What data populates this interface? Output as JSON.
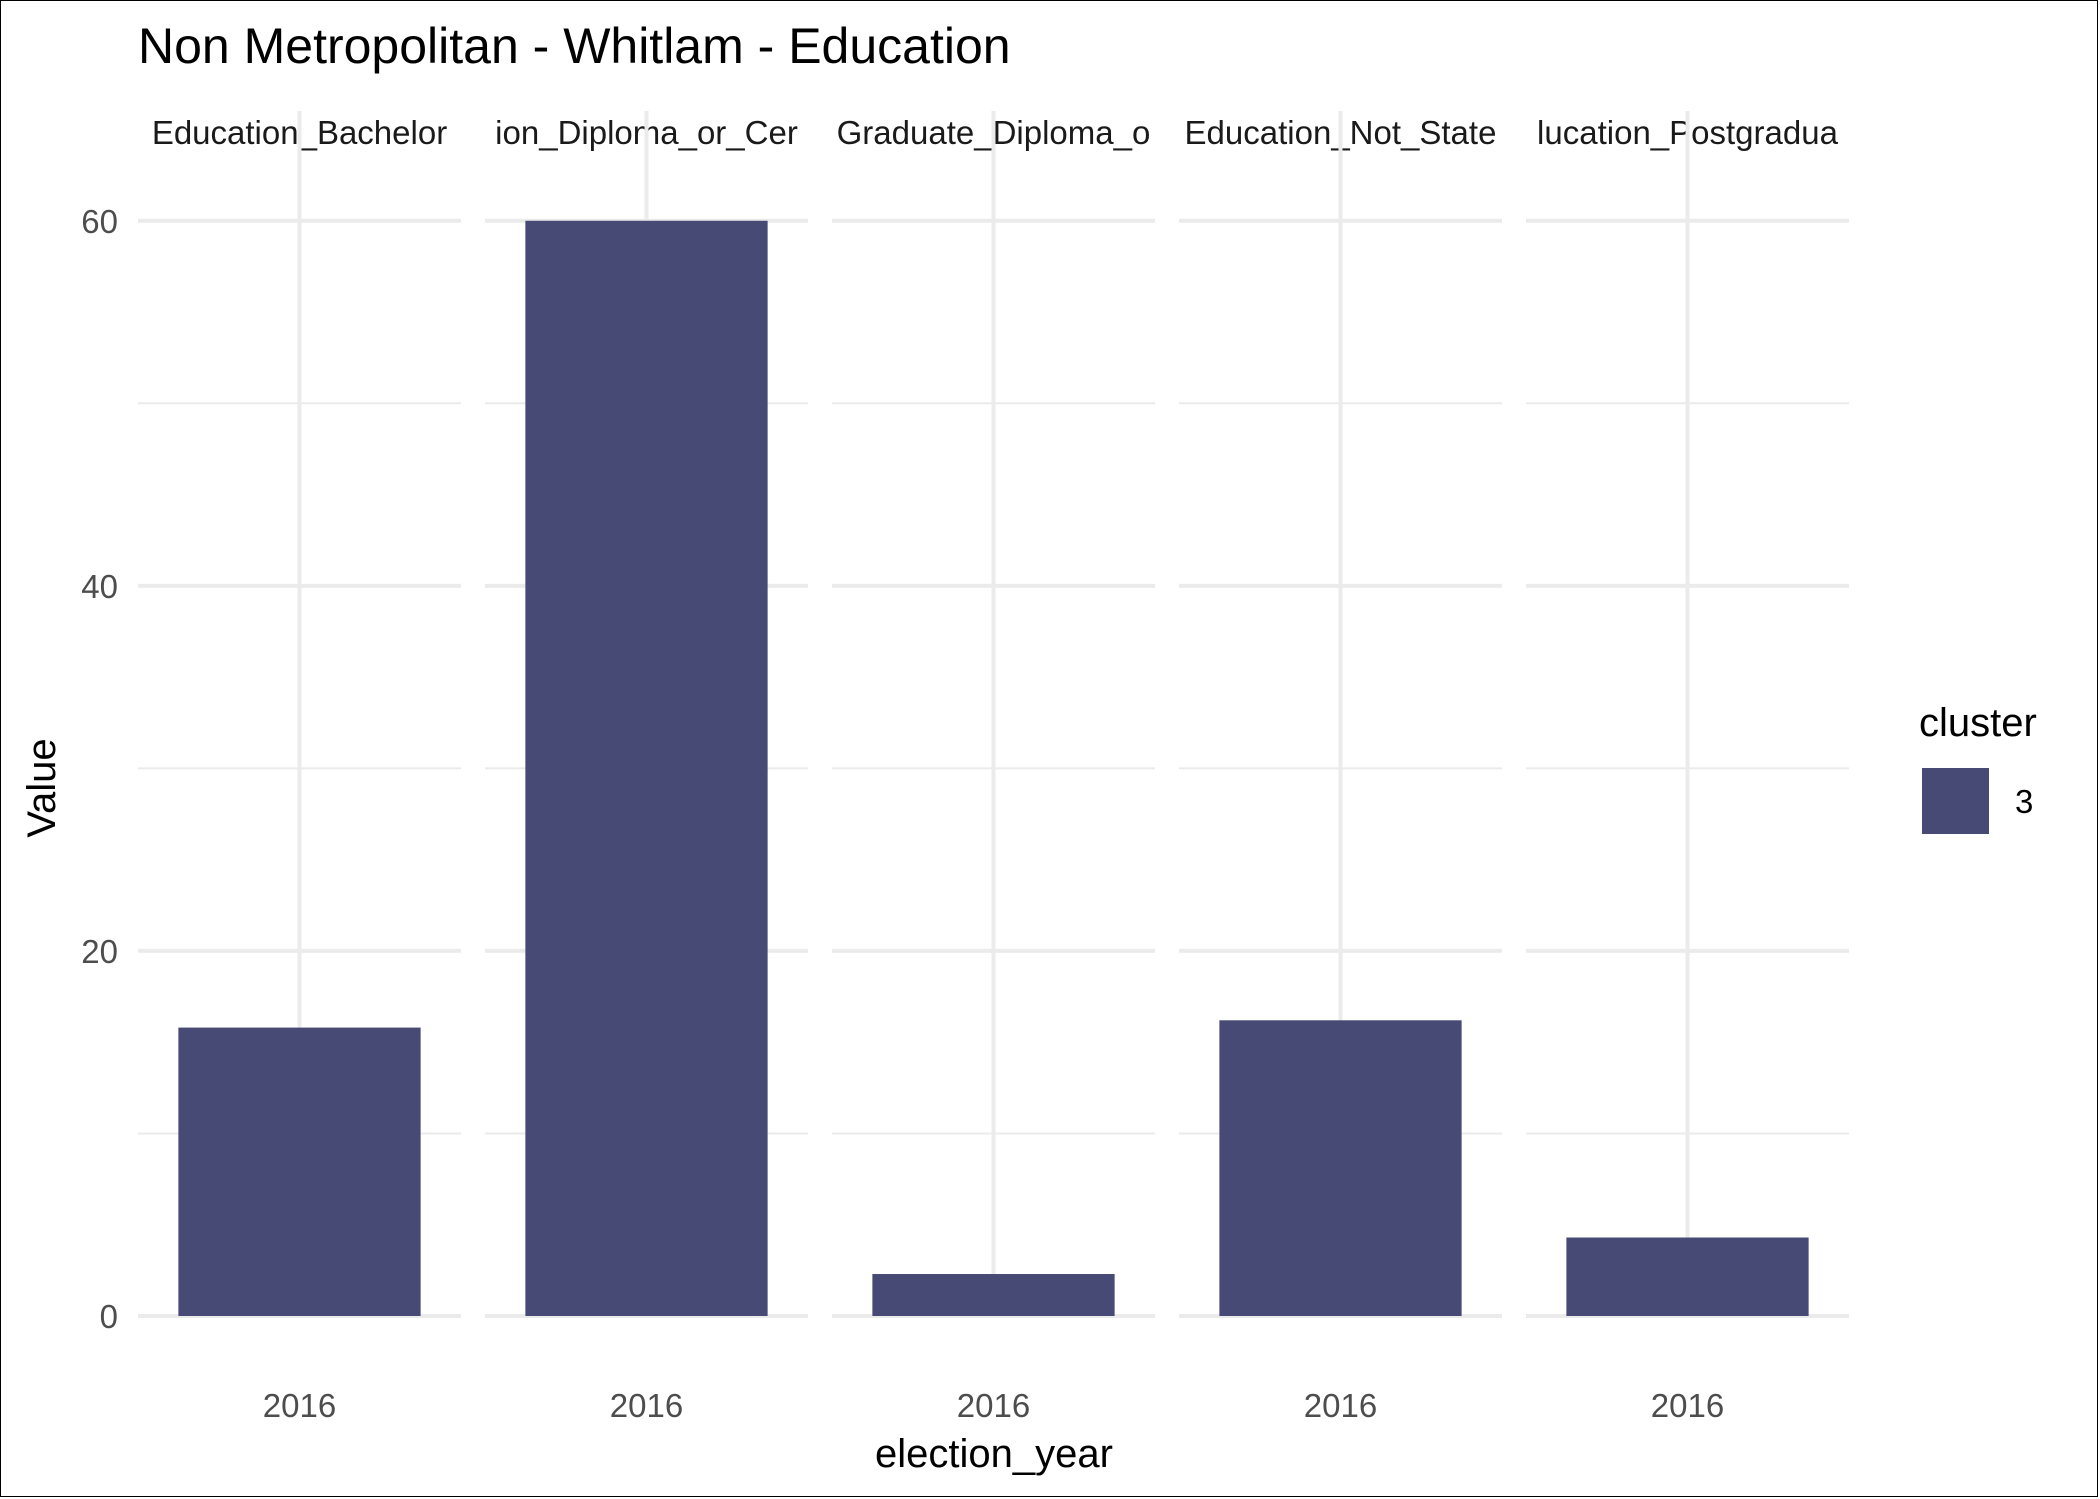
{
  "chart_data": {
    "type": "bar",
    "title": "Non Metropolitan - Whitlam - Education",
    "xlabel": "election_year",
    "ylabel": "Value",
    "ylim": [
      0,
      63
    ],
    "yticks": [
      0,
      20,
      40,
      60
    ],
    "grid": true,
    "facets": [
      {
        "strip": "Education_Bachelor",
        "categories": [
          "2016"
        ],
        "values": [
          15.8
        ]
      },
      {
        "strip": "ion_Diploma_or_Cer",
        "categories": [
          "2016"
        ],
        "values": [
          60.0
        ]
      },
      {
        "strip": "Graduate_Diploma_o",
        "categories": [
          "2016"
        ],
        "values": [
          2.3
        ]
      },
      {
        "strip": "Education_Not_State",
        "categories": [
          "2016"
        ],
        "values": [
          16.2
        ]
      },
      {
        "strip": "lucation_Postgradua",
        "categories": [
          "2016"
        ],
        "values": [
          4.3
        ]
      }
    ],
    "legend": {
      "title": "cluster",
      "placement": "right",
      "items": [
        {
          "label": "3",
          "color": "#484a76"
        }
      ]
    },
    "colors": {
      "bar": "#484a76",
      "grid": "#ebebeb",
      "text": "#000000",
      "tick_text": "#4d4d4d"
    }
  }
}
